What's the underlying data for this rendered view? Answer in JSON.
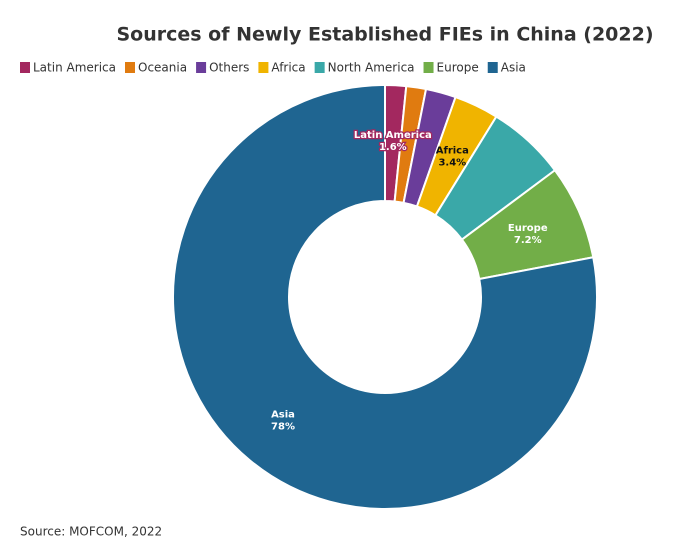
{
  "chart_data": {
    "type": "donut",
    "title": "Sources of Newly Established FIEs in China (2022)",
    "categories": [
      "Latin America",
      "Oceania",
      "Others",
      "Africa",
      "North America",
      "Europe",
      "Asia"
    ],
    "values": [
      1.6,
      1.5,
      2.3,
      3.4,
      6.0,
      7.2,
      78
    ],
    "value_labels": [
      "1.6%",
      null,
      null,
      "3.4%",
      null,
      "7.2%",
      "78%"
    ],
    "colors": [
      "#a3285f",
      "#e07b10",
      "#6a3d9a",
      "#f0b400",
      "#3aa8a8",
      "#72ae48",
      "#1f6591"
    ],
    "source": "Source: MOFCOM, 2022"
  }
}
